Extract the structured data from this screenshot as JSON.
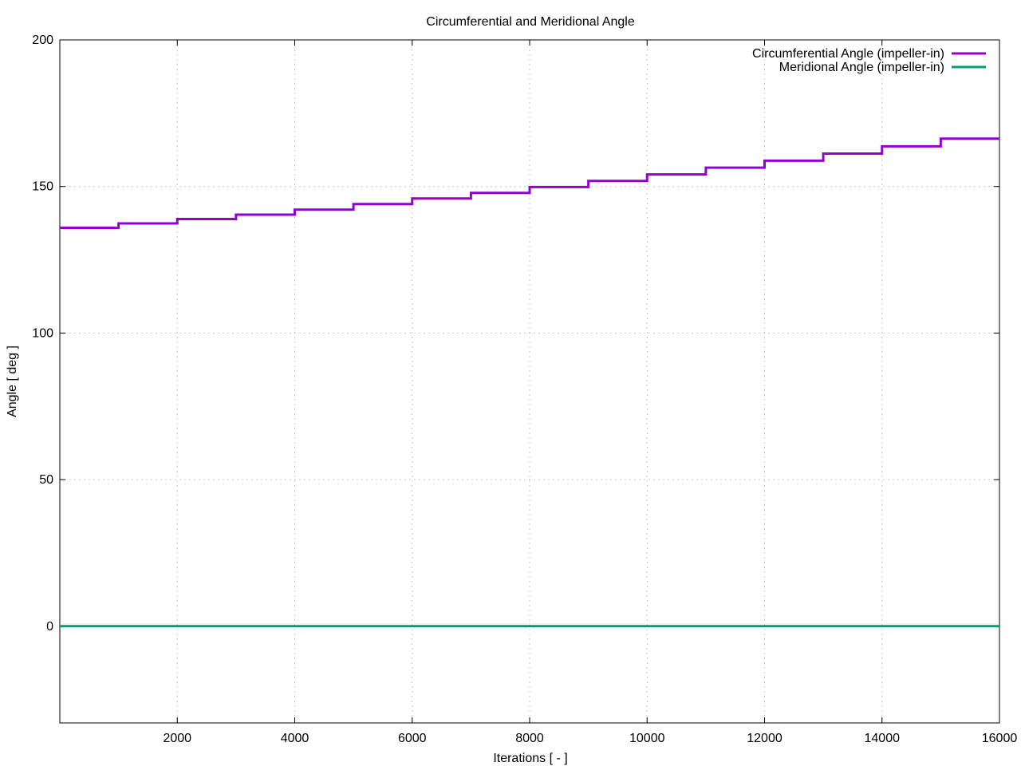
{
  "chart_data": {
    "type": "line",
    "title": "Circumferential and Meridional Angle",
    "xlabel": "Iterations [ - ]",
    "ylabel": "Angle [ deg ]",
    "xlim": [
      0,
      16000
    ],
    "ylim": [
      -33,
      200
    ],
    "xticks": [
      2000,
      4000,
      6000,
      8000,
      10000,
      12000,
      14000,
      16000
    ],
    "yticks": [
      0,
      50,
      100,
      150,
      200
    ],
    "grid": true,
    "legend_position": "top-right",
    "series": [
      {
        "name": "Circumferential Angle (impeller-in)",
        "color": "#9400d3",
        "step": true,
        "x": [
          0,
          1000,
          2000,
          3000,
          4000,
          5000,
          6000,
          7000,
          8000,
          9000,
          10000,
          11000,
          12000,
          13000,
          14000,
          15000,
          16000
        ],
        "y": [
          135.9,
          137.4,
          138.9,
          140.4,
          142.1,
          144.0,
          145.9,
          147.8,
          149.8,
          151.9,
          154.1,
          156.4,
          158.8,
          161.2,
          163.7,
          166.3,
          166.3
        ]
      },
      {
        "name": "Meridional Angle (impeller-in)",
        "color": "#009e73",
        "step": false,
        "x": [
          0,
          16000
        ],
        "y": [
          0,
          0
        ]
      }
    ]
  }
}
